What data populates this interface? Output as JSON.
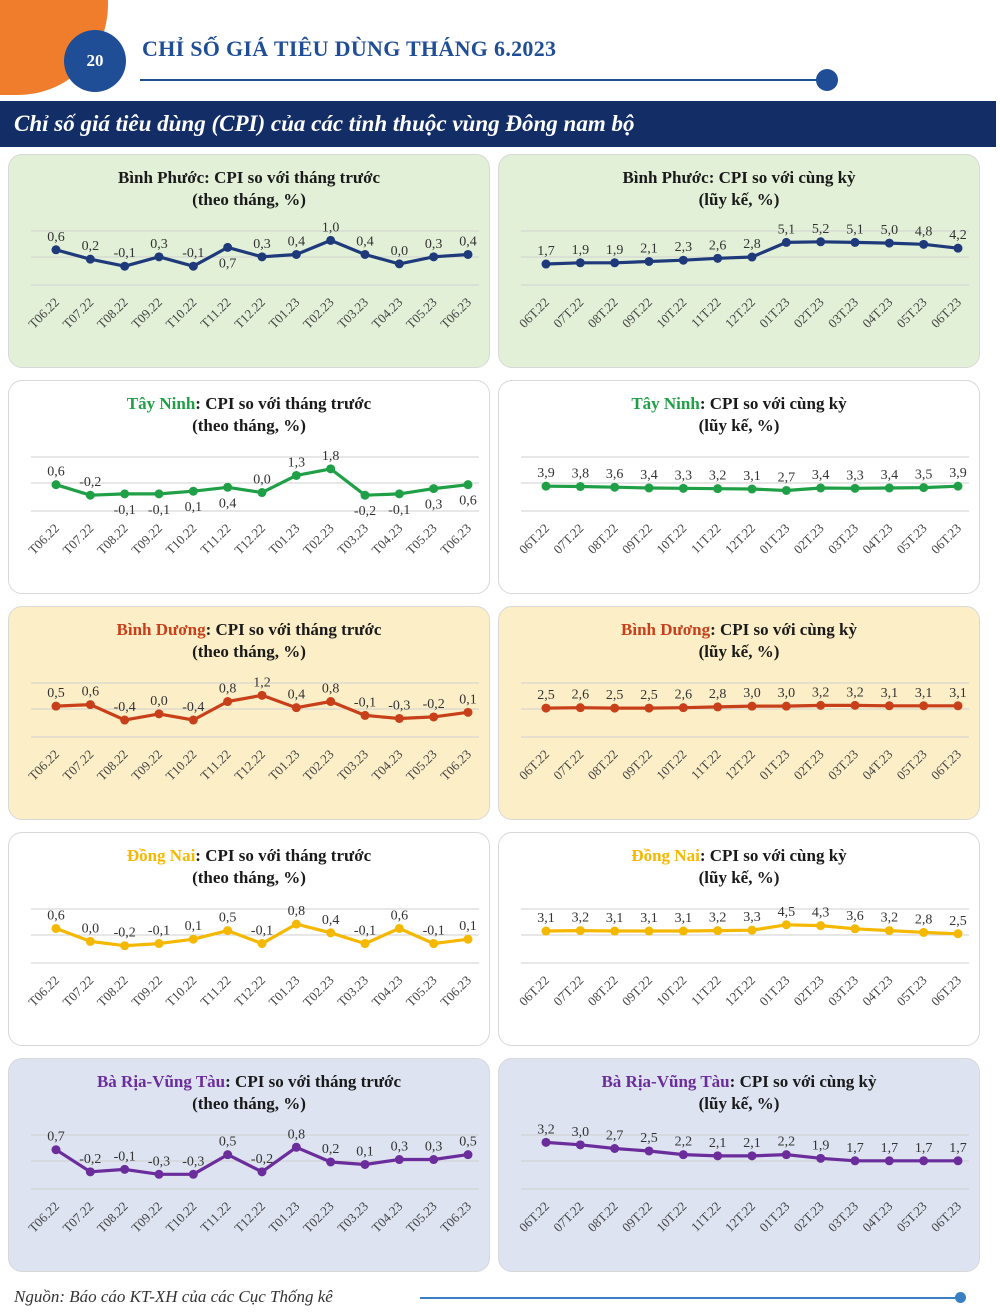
{
  "page": {
    "number": "20",
    "doc_title": "CHỈ SỐ GIÁ TIÊU DÙNG THÁNG 6.2023"
  },
  "section_title": "Chỉ số giá tiêu dùng (CPI) của các tỉnh thuộc vùng Đông nam bộ",
  "source": "Nguồn: Báo cáo KT-XH của các Cục Thống kê",
  "colors": {
    "accent_blue": "#1f4e96",
    "section_bar": "#132e66",
    "orange": "#ef7d2b"
  },
  "chart_data": [
    {
      "type": "line",
      "province": "Bình Phước",
      "title_rest": ": CPI so với tháng trước",
      "subtitle": "(theo tháng, %)",
      "categories": [
        "T06.22",
        "T07.22",
        "T08.22",
        "T09.22",
        "T10.22",
        "T11.22",
        "T12.22",
        "T01.23",
        "T02.23",
        "T03.23",
        "T04.23",
        "T05.23",
        "T06.23"
      ],
      "values": [
        0.6,
        0.2,
        -0.1,
        0.3,
        -0.1,
        0.7,
        0.3,
        0.4,
        1.0,
        0.4,
        0.0,
        0.3,
        0.4
      ],
      "labels": [
        "0,6",
        "0,2",
        "-0,1",
        "0,3",
        "-0,1",
        "0,7",
        "0,3",
        "0,4",
        "1,0",
        "0,4",
        "0,0",
        "0,3",
        "0,4"
      ],
      "label_pos": [
        "above",
        "above",
        "above",
        "above",
        "above",
        "below",
        "above",
        "above",
        "above",
        "above",
        "above",
        "above",
        "above"
      ],
      "ylim": [
        -0.9,
        1.4
      ],
      "line_color": "#1f3a7a",
      "province_color": "#1a1a1a",
      "bg": "#e3f0d8"
    },
    {
      "type": "line",
      "province": "Bình Phước",
      "title_rest": ": CPI so với cùng kỳ",
      "subtitle": "(lũy kế, %)",
      "categories": [
        "06T.22",
        "07T.22",
        "08T.22",
        "09T.22",
        "10T.22",
        "11T.22",
        "12T.22",
        "01T.23",
        "02T.23",
        "03T.23",
        "04T.23",
        "05T.23",
        "06T.23"
      ],
      "values": [
        1.7,
        1.9,
        1.9,
        2.1,
        2.3,
        2.6,
        2.8,
        5.1,
        5.2,
        5.1,
        5.0,
        4.8,
        4.2
      ],
      "labels": [
        "1,7",
        "1,9",
        "1,9",
        "2,1",
        "2,3",
        "2,6",
        "2,8",
        "5,1",
        "5,2",
        "5,1",
        "5,0",
        "4,8",
        "4,2"
      ],
      "label_pos": [
        "above",
        "above",
        "above",
        "above",
        "above",
        "above",
        "above",
        "above",
        "above",
        "above",
        "above",
        "above",
        "above"
      ],
      "ylim": [
        -1.6,
        6.9
      ],
      "line_color": "#1f3a7a",
      "province_color": "#1a1a1a",
      "bg": "#e3f0d8"
    },
    {
      "type": "line",
      "province": "Tây Ninh",
      "title_rest": ": CPI so với tháng trước",
      "subtitle": "(theo tháng, %)",
      "categories": [
        "T06.22",
        "T07.22",
        "T08.22",
        "T09.22",
        "T10.22",
        "T11.22",
        "T12.22",
        "T01.23",
        "T02.23",
        "T03.23",
        "T04.23",
        "T05.23",
        "T06.23"
      ],
      "values": [
        0.6,
        -0.2,
        -0.1,
        -0.1,
        0.1,
        0.4,
        0.0,
        1.3,
        1.8,
        -0.2,
        -0.1,
        0.3,
        0.6
      ],
      "labels": [
        "0,6",
        "-0,2",
        "-0,1",
        "-0,1",
        "0,1",
        "0,4",
        "0,0",
        "1,3",
        "1,8",
        "-0,2",
        "-0,1",
        "0,3",
        "0,6"
      ],
      "label_pos": [
        "above",
        "above",
        "below",
        "below",
        "below",
        "below",
        "above",
        "above",
        "above",
        "below",
        "below",
        "below",
        "below"
      ],
      "ylim": [
        -1.4,
        2.7
      ],
      "line_color": "#1fa046",
      "province_color": "#1fa046",
      "bg": "#ffffff"
    },
    {
      "type": "line",
      "province": "Tây Ninh",
      "title_rest": ": CPI so với cùng kỳ",
      "subtitle": "(lũy kế, %)",
      "categories": [
        "06T.22",
        "07T.22",
        "08T.22",
        "09T.22",
        "10T.22",
        "11T.22",
        "12T.22",
        "01T.23",
        "02T.23",
        "03T.23",
        "04T.23",
        "05T.23",
        "06T.23"
      ],
      "values": [
        3.9,
        3.8,
        3.6,
        3.4,
        3.3,
        3.2,
        3.1,
        2.7,
        3.4,
        3.3,
        3.4,
        3.5,
        3.9
      ],
      "labels": [
        "3,9",
        "3,8",
        "3,6",
        "3,4",
        "3,3",
        "3,2",
        "3,1",
        "2,7",
        "3,4",
        "3,3",
        "3,4",
        "3,5",
        "3,9"
      ],
      "label_pos": [
        "above",
        "above",
        "above",
        "above",
        "above",
        "above",
        "above",
        "above",
        "above",
        "above",
        "above",
        "above",
        "above"
      ],
      "ylim": [
        -3.0,
        12.0
      ],
      "line_color": "#1fa046",
      "province_color": "#1fa046",
      "bg": "#ffffff"
    },
    {
      "type": "line",
      "province": "Bình Dương",
      "title_rest": ": CPI so với tháng trước",
      "subtitle": "(theo tháng, %)",
      "categories": [
        "T06.22",
        "T07.22",
        "T08.22",
        "T09.22",
        "T10.22",
        "T11.22",
        "T12.22",
        "T01.23",
        "T02.23",
        "T03.23",
        "T04.23",
        "T05.23",
        "T06.23"
      ],
      "values": [
        0.5,
        0.6,
        -0.4,
        0.0,
        -0.4,
        0.8,
        1.2,
        0.4,
        0.8,
        -0.1,
        -0.3,
        -0.2,
        0.1
      ],
      "labels": [
        "0,5",
        "0,6",
        "-0,4",
        "0,0",
        "-0,4",
        "0,8",
        "1,2",
        "0,4",
        "0,8",
        "-0,1",
        "-0,3",
        "-0,2",
        "0,1"
      ],
      "label_pos": [
        "above",
        "above",
        "above",
        "above",
        "above",
        "above",
        "above",
        "above",
        "above",
        "above",
        "above",
        "above",
        "above"
      ],
      "ylim": [
        -1.5,
        2.0
      ],
      "line_color": "#c8401a",
      "province_color": "#c8401a",
      "bg": "#fcefc8"
    },
    {
      "type": "line",
      "province": "Bình Dương",
      "title_rest": ": CPI so với cùng kỳ",
      "subtitle": "(lũy kế, %)",
      "categories": [
        "06T.22",
        "07T.22",
        "08T.22",
        "09T.22",
        "10T.22",
        "11T.22",
        "12T.22",
        "01T.23",
        "02T.23",
        "03T.23",
        "04T.23",
        "05T.23",
        "06T.23"
      ],
      "values": [
        2.5,
        2.6,
        2.5,
        2.5,
        2.6,
        2.8,
        3.0,
        3.0,
        3.2,
        3.2,
        3.1,
        3.1,
        3.1
      ],
      "labels": [
        "2,5",
        "2,6",
        "2,5",
        "2,5",
        "2,6",
        "2,8",
        "3,0",
        "3,0",
        "3,2",
        "3,2",
        "3,1",
        "3,1",
        "3,1"
      ],
      "label_pos": [
        "above",
        "above",
        "above",
        "above",
        "above",
        "above",
        "above",
        "above",
        "above",
        "above",
        "above",
        "above",
        "above"
      ],
      "ylim": [
        -5.0,
        9.0
      ],
      "line_color": "#c8401a",
      "province_color": "#c8401a",
      "bg": "#fcefc8"
    },
    {
      "type": "line",
      "province": "Đồng Nai",
      "title_rest": ": CPI so với tháng trước",
      "subtitle": "(theo tháng, %)",
      "categories": [
        "T06.22",
        "T07.22",
        "T08.22",
        "T09.22",
        "T10.22",
        "T11.22",
        "T12.22",
        "T01.23",
        "T02.23",
        "T03.23",
        "T04.23",
        "T05.23",
        "T06.23"
      ],
      "values": [
        0.6,
        0.0,
        -0.2,
        -0.1,
        0.1,
        0.5,
        -0.1,
        0.8,
        0.4,
        -0.1,
        0.6,
        -0.1,
        0.1
      ],
      "labels": [
        "0,6",
        "0,0",
        "-0,2",
        "-0,1",
        "0,1",
        "0,5",
        "-0,1",
        "0,8",
        "0,4",
        "-0,1",
        "0,6",
        "-0,1",
        "0,1"
      ],
      "label_pos": [
        "above",
        "above",
        "above",
        "above",
        "above",
        "above",
        "above",
        "above",
        "above",
        "above",
        "above",
        "above",
        "above"
      ],
      "ylim": [
        -1.0,
        1.5
      ],
      "line_color": "#f5b800",
      "province_color": "#f5b800",
      "bg": "#ffffff"
    },
    {
      "type": "line",
      "province": "Đồng Nai",
      "title_rest": ": CPI so với cùng kỳ",
      "subtitle": "(lũy kế, %)",
      "categories": [
        "06T.22",
        "07T.22",
        "08T.22",
        "09T.22",
        "10T.22",
        "11T.22",
        "12T.22",
        "01T.23",
        "02T.23",
        "03T.23",
        "04T.23",
        "05T.23",
        "06T.23"
      ],
      "values": [
        3.1,
        3.2,
        3.1,
        3.1,
        3.1,
        3.2,
        3.3,
        4.5,
        4.3,
        3.6,
        3.2,
        2.8,
        2.5
      ],
      "labels": [
        "3,1",
        "3,2",
        "3,1",
        "3,1",
        "3,1",
        "3,2",
        "3,3",
        "4,5",
        "4,3",
        "3,6",
        "3,2",
        "2,8",
        "2,5"
      ],
      "label_pos": [
        "above",
        "above",
        "above",
        "above",
        "above",
        "above",
        "above",
        "above",
        "above",
        "above",
        "above",
        "above",
        "above"
      ],
      "ylim": [
        -4.0,
        8.0
      ],
      "line_color": "#f5b800",
      "province_color": "#f5b800",
      "bg": "#ffffff"
    },
    {
      "type": "line",
      "province": "Bà Rịa-Vũng Tàu",
      "title_rest": ": CPI so với tháng trước",
      "subtitle": "(theo tháng, %)",
      "categories": [
        "T06.22",
        "T07.22",
        "T08.22",
        "T09.22",
        "T10.22",
        "T11.22",
        "T12.22",
        "T01.23",
        "T02.23",
        "T03.23",
        "T04.23",
        "T05.23",
        "T06.23"
      ],
      "values": [
        0.7,
        -0.2,
        -0.1,
        -0.3,
        -0.3,
        0.5,
        -0.2,
        0.8,
        0.2,
        0.1,
        0.3,
        0.3,
        0.5
      ],
      "labels": [
        "0,7",
        "-0,2",
        "-0,1",
        "-0,3",
        "-0,3",
        "0,5",
        "-0,2",
        "0,8",
        "0,2",
        "0,1",
        "0,3",
        "0,3",
        "0,5"
      ],
      "label_pos": [
        "above",
        "above",
        "above",
        "above",
        "above",
        "above",
        "above",
        "above",
        "above",
        "above",
        "above",
        "above",
        "above"
      ],
      "ylim": [
        -0.9,
        1.3
      ],
      "line_color": "#6b2d9c",
      "province_color": "#6b2d9c",
      "bg": "#dde3f1"
    },
    {
      "type": "line",
      "province": "Bà Rịa-Vũng Tàu",
      "title_rest": ": CPI so với cùng kỳ",
      "subtitle": "(lũy kế, %)",
      "categories": [
        "06T.22",
        "07T.22",
        "08T.22",
        "09T.22",
        "10T.22",
        "11T.22",
        "12T.22",
        "01T.23",
        "02T.23",
        "03T.23",
        "04T.23",
        "05T.23",
        "06T.23"
      ],
      "values": [
        3.2,
        3.0,
        2.7,
        2.5,
        2.2,
        2.1,
        2.1,
        2.2,
        1.9,
        1.7,
        1.7,
        1.7,
        1.7
      ],
      "labels": [
        "3,2",
        "3,0",
        "2,7",
        "2,5",
        "2,2",
        "2,1",
        "2,1",
        "2,2",
        "1,9",
        "1,7",
        "1,7",
        "1,7",
        "1,7"
      ],
      "label_pos": [
        "above",
        "above",
        "above",
        "above",
        "above",
        "above",
        "above",
        "above",
        "above",
        "above",
        "above",
        "above",
        "above"
      ],
      "ylim": [
        -0.6,
        3.8
      ],
      "line_color": "#6b2d9c",
      "province_color": "#6b2d9c",
      "bg": "#dde3f1"
    }
  ]
}
